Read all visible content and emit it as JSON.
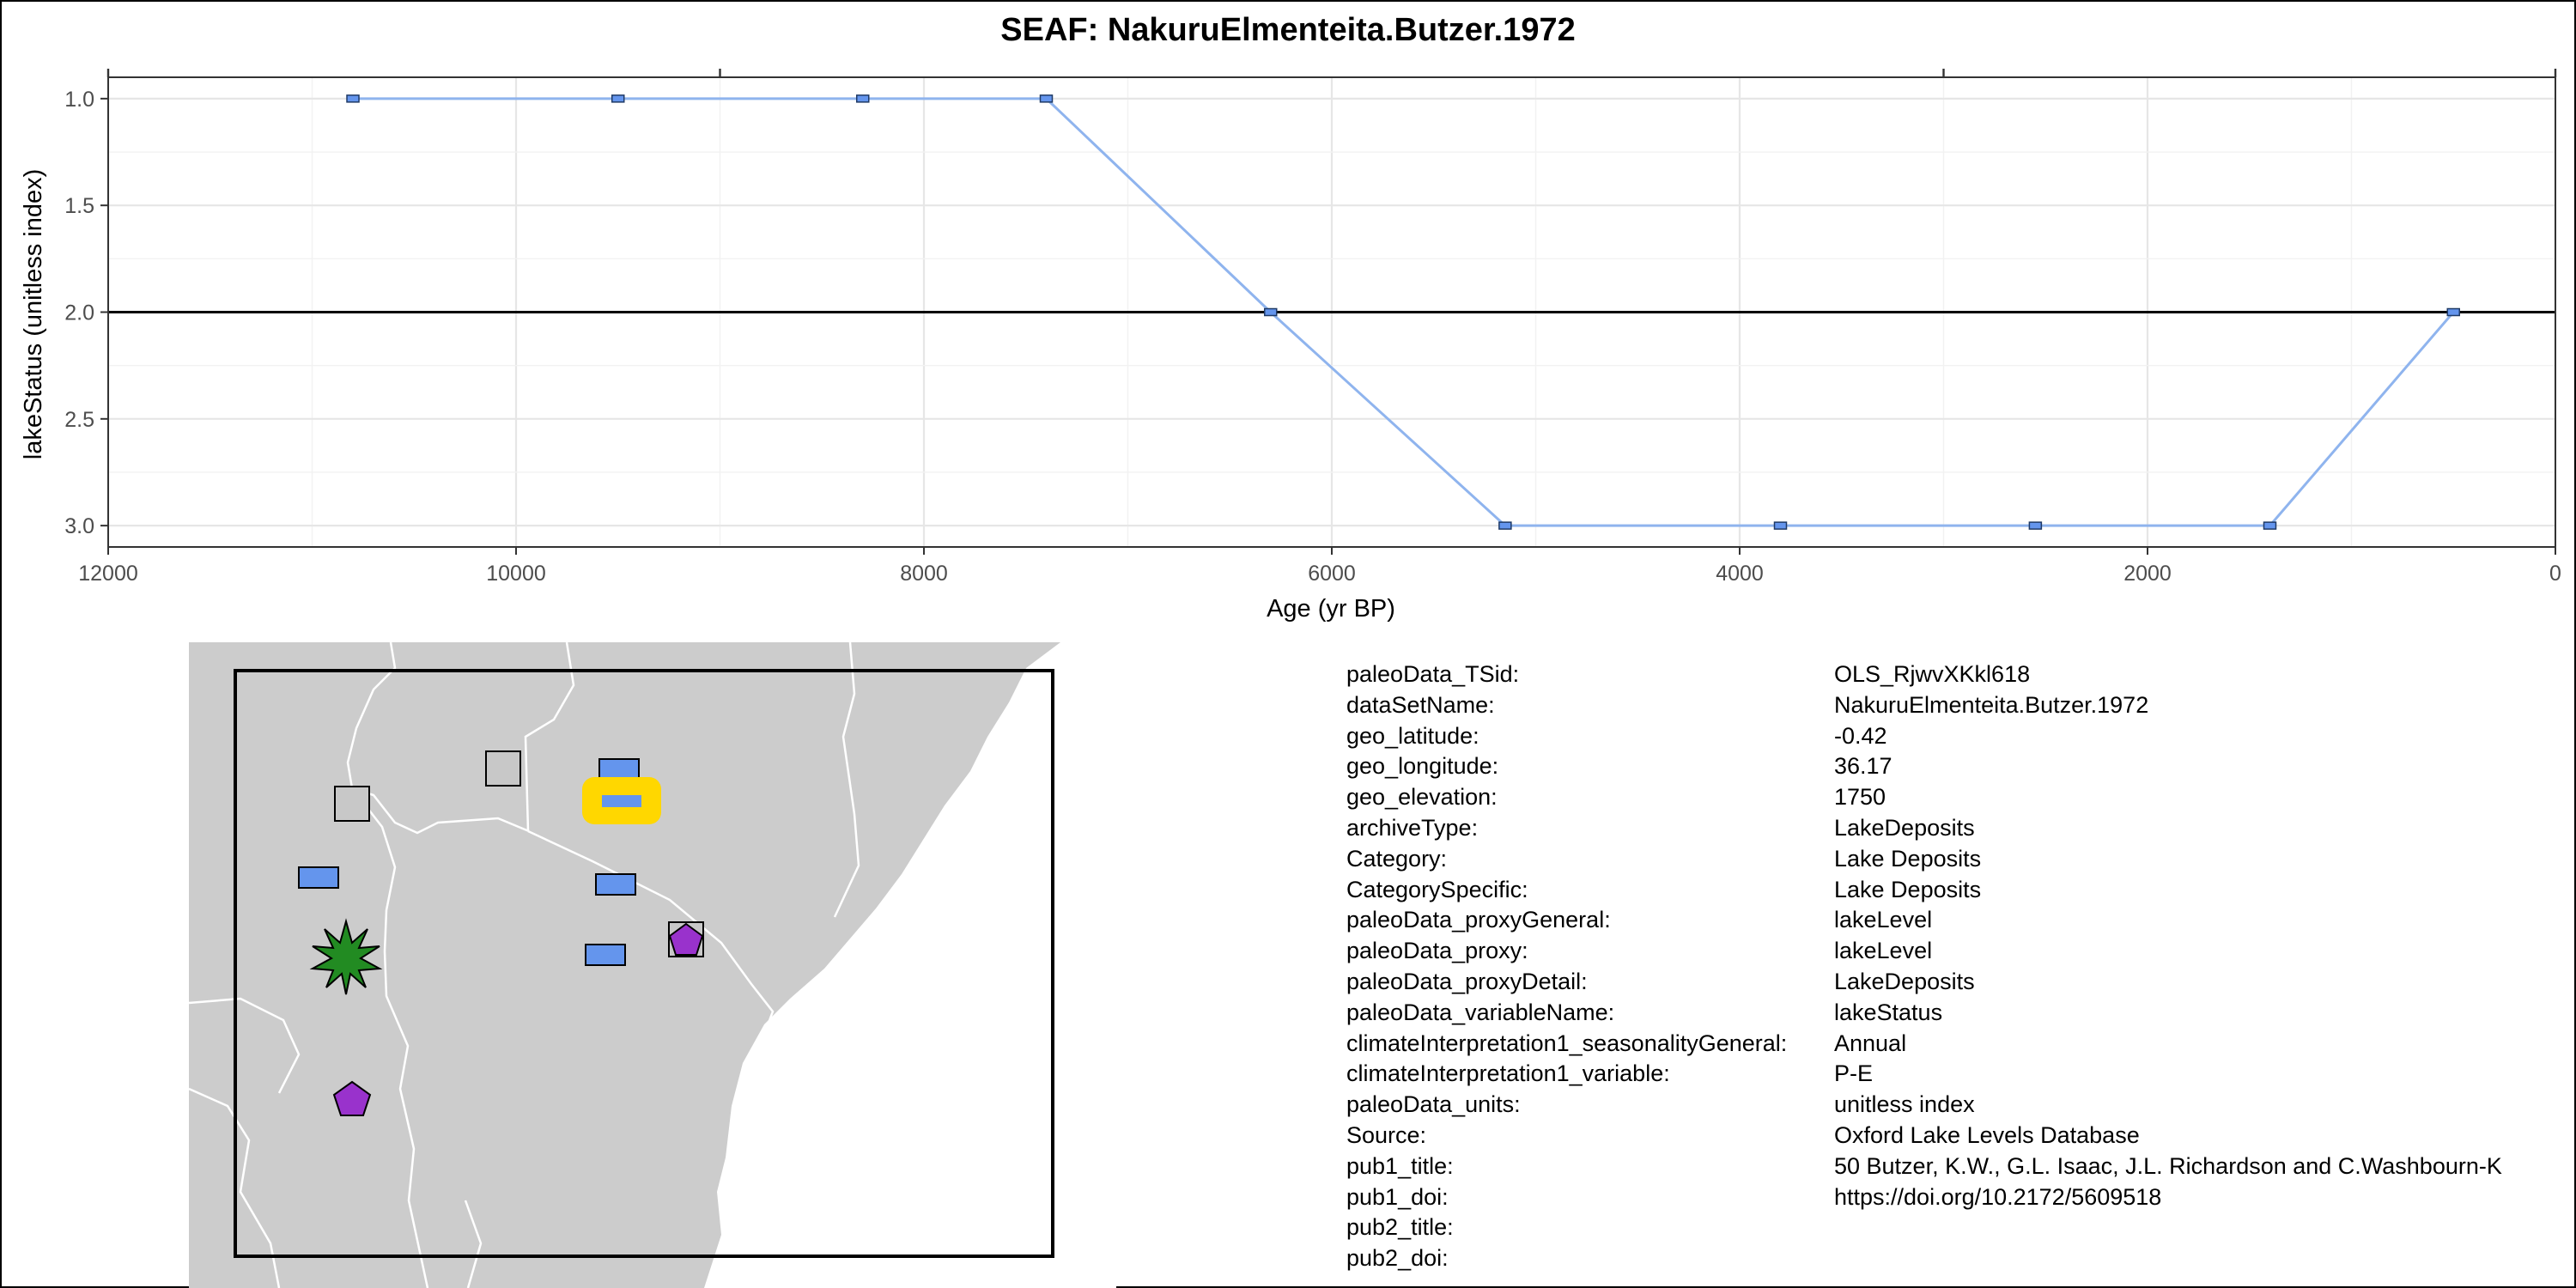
{
  "chart_data": {
    "type": "line",
    "title": "SEAF: NakuruElmenteita.Butzer.1972",
    "xlabel": "Age (yr BP)",
    "ylabel": "lakeStatus (unitless index)",
    "xlim": [
      12000,
      0
    ],
    "ylim": [
      3.1,
      0.9
    ],
    "x_reversed": true,
    "y_reversed": true,
    "x_ticks": [
      12000,
      10000,
      8000,
      6000,
      4000,
      2000,
      0
    ],
    "x_tick_labels": [
      "12000",
      "10000",
      "8000",
      "6000",
      "4000",
      "2000",
      "0"
    ],
    "y_ticks": [
      1.0,
      1.5,
      2.0,
      2.5,
      3.0
    ],
    "y_tick_labels": [
      "1.0",
      "1.5",
      "2.0",
      "2.5",
      "3.0"
    ],
    "reference_line_y": 2.0,
    "grid": true,
    "series": [
      {
        "x": [
          10800,
          9500,
          8300,
          7400,
          6300,
          5150,
          3800,
          2550,
          1400,
          500
        ],
        "y": [
          1,
          1,
          1,
          1,
          2,
          3,
          3,
          3,
          3,
          2
        ],
        "color": "#8fb4ee",
        "marker_color": "#6495ed"
      }
    ]
  },
  "map": {
    "land_color": "#cccccc",
    "border_color": "#ffffff",
    "frame_color": "#000000",
    "markers": [
      {
        "shape": "square",
        "color": "#c8c8c8"
      },
      {
        "shape": "square",
        "color": "#c8c8c8"
      },
      {
        "shape": "rect",
        "color": "#6495ed"
      },
      {
        "shape": "rect",
        "color": "#6495ed",
        "highlight": "#ffd700"
      },
      {
        "shape": "rect",
        "color": "#6495ed"
      },
      {
        "shape": "rect",
        "color": "#6495ed"
      },
      {
        "shape": "rect",
        "color": "#6495ed"
      },
      {
        "shape": "pentagon",
        "color": "#9932cc"
      },
      {
        "shape": "pentagon",
        "color": "#9932cc"
      },
      {
        "shape": "star",
        "color": "#228b22"
      }
    ]
  },
  "metadata": [
    {
      "key": "paleoData_TSid:",
      "value": "OLS_RjwvXKkl618"
    },
    {
      "key": "dataSetName:",
      "value": "NakuruElmenteita.Butzer.1972"
    },
    {
      "key": "geo_latitude:",
      "value": "-0.42"
    },
    {
      "key": "geo_longitude:",
      "value": "36.17"
    },
    {
      "key": "geo_elevation:",
      "value": "1750"
    },
    {
      "key": "archiveType:",
      "value": "LakeDeposits"
    },
    {
      "key": "Category:",
      "value": "Lake Deposits"
    },
    {
      "key": "CategorySpecific:",
      "value": "Lake Deposits"
    },
    {
      "key": "paleoData_proxyGeneral:",
      "value": "lakeLevel"
    },
    {
      "key": "paleoData_proxy:",
      "value": "lakeLevel"
    },
    {
      "key": "paleoData_proxyDetail:",
      "value": "LakeDeposits"
    },
    {
      "key": "paleoData_variableName:",
      "value": "lakeStatus"
    },
    {
      "key": "climateInterpretation1_seasonalityGeneral:",
      "value": "Annual"
    },
    {
      "key": "climateInterpretation1_variable:",
      "value": "P-E"
    },
    {
      "key": "paleoData_units:",
      "value": "unitless index"
    },
    {
      "key": "Source:",
      "value": "Oxford Lake Levels Database"
    },
    {
      "key": "pub1_title:",
      "value": "50  Butzer, K.W., G.L. Isaac, J.L. Richardson and C.Washbourn-K"
    },
    {
      "key": "pub1_doi:",
      "value": "https://doi.org/10.2172/5609518"
    },
    {
      "key": "pub2_title:",
      "value": ""
    },
    {
      "key": "pub2_doi:",
      "value": ""
    }
  ]
}
